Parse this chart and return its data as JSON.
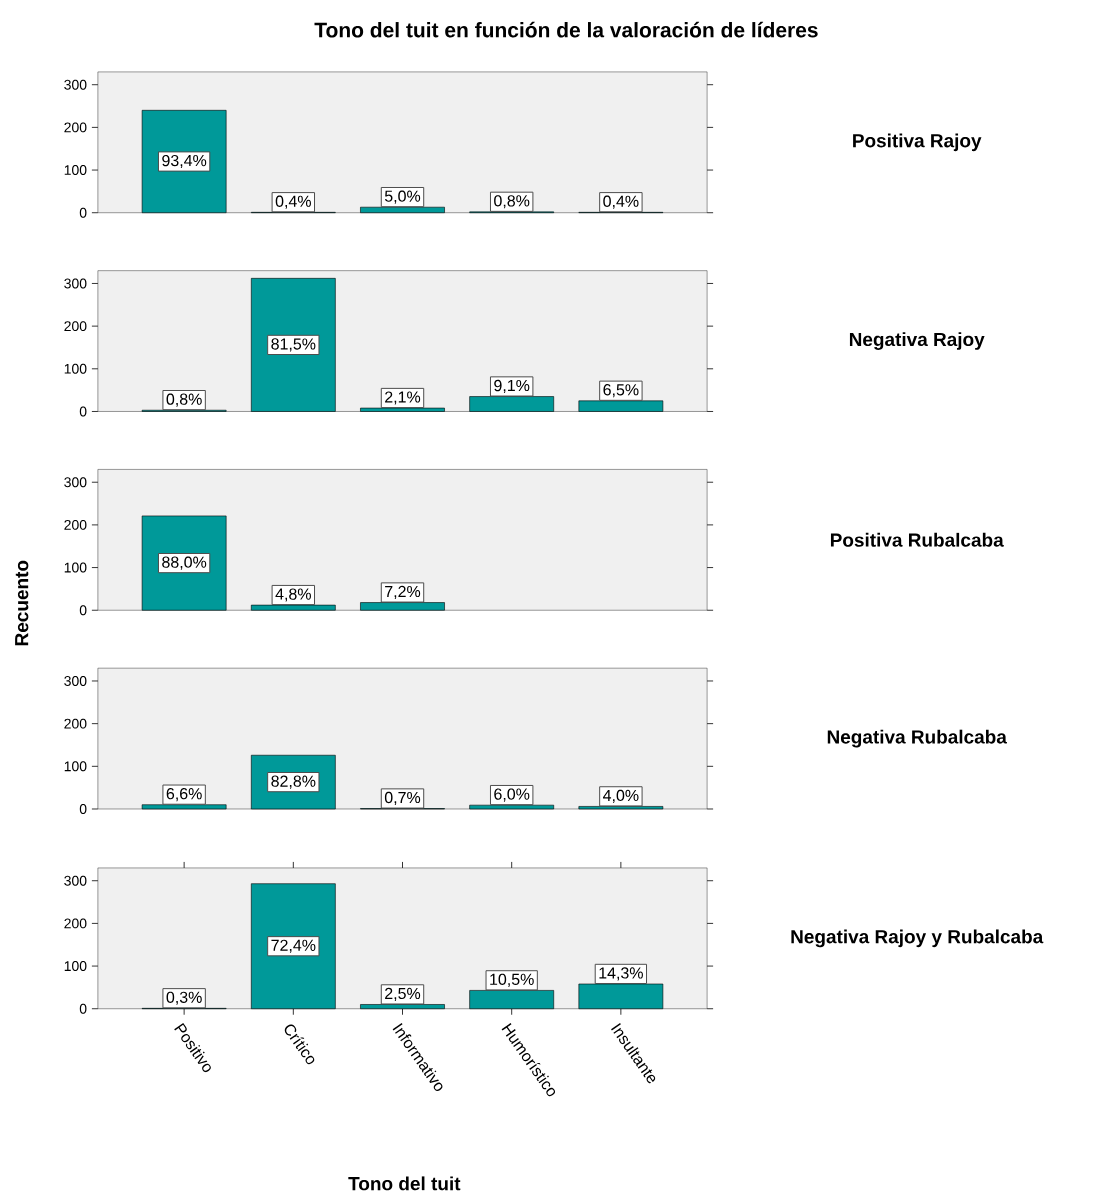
{
  "chart_data": [
    {
      "type": "bar",
      "title": "Tono del tuit en función de la valoración de líderes",
      "y2label": "Positiva Rajoy",
      "categories": [
        "Positivo",
        "Crítico",
        "Informativo",
        "Humorístico",
        "Insultante"
      ],
      "values": [
        240,
        1,
        13,
        2,
        1
      ],
      "color": "#009999",
      "ylim": [
        0,
        330
      ],
      "yticks": [
        0,
        100,
        200,
        300
      ],
      "tick_labels": "y",
      "annotations": [
        "93,4%",
        {
          "text": "0,4%",
          "x": "Crítico",
          "y": 1
        },
        {
          "text": "5,0%",
          "x": "Informativo",
          "y": 13
        },
        {
          "text": "0,8%",
          "x": "Humorístico",
          "y": 2
        },
        {
          "text": "0,4%",
          "x": "Insultante",
          "y": 1
        }
      ]
    },
    {
      "type": "bar",
      "y2label": "Negativa Rajoy",
      "categories": [
        "Positivo",
        "Crítico",
        "Informativo",
        "Humorístico",
        "Insultante"
      ],
      "values": [
        3,
        312,
        8,
        35,
        25
      ],
      "color": "#009999",
      "ylim": [
        0,
        330
      ],
      "yticks": [
        0,
        100,
        200,
        300
      ],
      "tick_labels": "y",
      "annotations": [
        {
          "text": "0,8%",
          "x": "Positivo",
          "y": 3
        },
        "81,5%",
        {
          "text": "2,1%",
          "x": "Informativo",
          "y": 8
        },
        {
          "text": "9,1%",
          "x": "Humorístico",
          "y": 35
        },
        {
          "text": "6,5%",
          "x": "Insultante",
          "y": 25
        }
      ]
    },
    {
      "type": "bar",
      "y2label": "Positiva Rubalcaba",
      "ylabel": "Recuento",
      "categories": [
        "Positivo",
        "Crítico",
        "Informativo",
        "Humorístico",
        "Insultante"
      ],
      "values": [
        221,
        12,
        18,
        null,
        null
      ],
      "color": "#009999",
      "ylim": [
        0,
        330
      ],
      "yticks": [
        0,
        100,
        200,
        300
      ],
      "tick_labels": "y",
      "annotations": [
        "88,0%",
        {
          "text": "4,8%",
          "x": "Crítico",
          "y": 12
        },
        {
          "text": "7,2%",
          "x": "Informativo",
          "y": 18
        }
      ]
    },
    {
      "type": "bar",
      "y2label": "Negativa Rubalcaba",
      "categories": [
        "Positivo",
        "Crítico",
        "Informativo",
        "Humorístico",
        "Insultante"
      ],
      "values": [
        10,
        126,
        1,
        9,
        6
      ],
      "color": "#009999",
      "ylim": [
        0,
        330
      ],
      "yticks": [
        0,
        100,
        200,
        300
      ],
      "tick_labels": "y",
      "annotations": [
        {
          "text": "6,6%",
          "x": "Positivo",
          "y": 10
        },
        "82,8%",
        {
          "text": "0,7%",
          "x": "Informativo",
          "y": 1
        },
        {
          "text": "6,0%",
          "x": "Humorístico",
          "y": 9
        },
        {
          "text": "4,0%",
          "x": "Insultante",
          "y": 6
        }
      ]
    },
    {
      "type": "bar",
      "y2label": "Negativa Rajoy y Rubalcaba",
      "xlabel": "Tono del tuit",
      "categories": [
        "Positivo",
        "Crítico",
        "Informativo",
        "Humorístico",
        "Insultante"
      ],
      "values": [
        1,
        293,
        10,
        43,
        58
      ],
      "color": "#009999",
      "ylim": [
        0,
        330
      ],
      "yticks": [
        0,
        100,
        200,
        300
      ],
      "annotations": [
        {
          "text": "0,3%",
          "x": "Positivo",
          "y": 1
        },
        "72,4%",
        {
          "text": "2,5%",
          "x": "Informativo",
          "y": 10
        },
        {
          "text": "10,5%",
          "x": "Humorístico",
          "y": 43
        },
        {
          "text": "14,3%",
          "x": "Insultante",
          "y": 58
        }
      ]
    }
  ]
}
